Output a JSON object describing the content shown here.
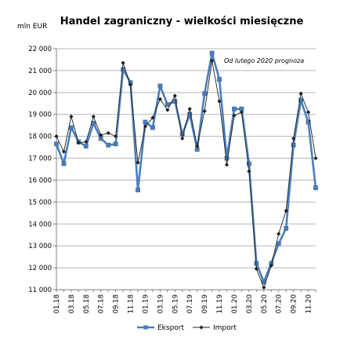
{
  "chart_data": {
    "type": "line",
    "title": "Handel zagraniczny - wielkości miesięczne",
    "ylabel": "mln EUR",
    "xlabel": "",
    "note": "Od lutego 2020 prognoza",
    "ylim": [
      11000,
      22000
    ],
    "y_ticks": [
      11000,
      12000,
      13000,
      14000,
      15000,
      16000,
      17000,
      18000,
      19000,
      20000,
      21000,
      22000
    ],
    "y_tick_labels": [
      "11 000",
      "12 000",
      "13 000",
      "14 000",
      "15 000",
      "16 000",
      "17 000",
      "18 000",
      "19 000",
      "20 000",
      "21 000",
      "22 000"
    ],
    "x": [
      "01.18",
      "02.18",
      "03.18",
      "04.18",
      "05.18",
      "06.18",
      "07.18",
      "08.18",
      "09.18",
      "10.18",
      "11.18",
      "12.18",
      "01.19",
      "02.19",
      "03.19",
      "04.19",
      "05.19",
      "06.19",
      "07.19",
      "08.19",
      "09.19",
      "10.19",
      "11.19",
      "12.19",
      "01.20",
      "02.20",
      "03.20",
      "04.20",
      "05.20",
      "06.20",
      "07.20",
      "08.20",
      "09.20",
      "10.20",
      "11.20",
      "12.20"
    ],
    "x_tick_labels": [
      "01.18",
      "03.18",
      "05.18",
      "07.18",
      "09.18",
      "11.18",
      "01.19",
      "03.19",
      "05.19",
      "07.19",
      "09.19",
      "11.19",
      "01.20",
      "03.20",
      "05.20",
      "07.20",
      "09.20",
      "11.20"
    ],
    "grid": true,
    "legend_position": "bottom",
    "series": [
      {
        "name": "Eksport",
        "color": "#4a7ebb",
        "marker": "square",
        "values": [
          17650,
          16750,
          18400,
          17750,
          17550,
          18600,
          17900,
          17600,
          17650,
          21050,
          20450,
          15550,
          18650,
          18400,
          20300,
          19450,
          19600,
          18100,
          19000,
          17400,
          19950,
          21800,
          20600,
          17000,
          19250,
          19250,
          16750,
          12200,
          11350,
          12200,
          13100,
          13800,
          17600,
          19650,
          18650,
          15650
        ]
      },
      {
        "name": "Import",
        "color": "#1f1f1f",
        "marker": "diamond",
        "values": [
          18000,
          17300,
          18900,
          17700,
          17750,
          18900,
          18050,
          18150,
          18000,
          21350,
          20350,
          16800,
          18450,
          18850,
          19700,
          19200,
          19850,
          17900,
          19250,
          17550,
          19150,
          21450,
          19600,
          16700,
          18950,
          19100,
          16400,
          11950,
          11100,
          12100,
          13550,
          14600,
          17900,
          19950,
          19100,
          17000
        ]
      }
    ]
  }
}
